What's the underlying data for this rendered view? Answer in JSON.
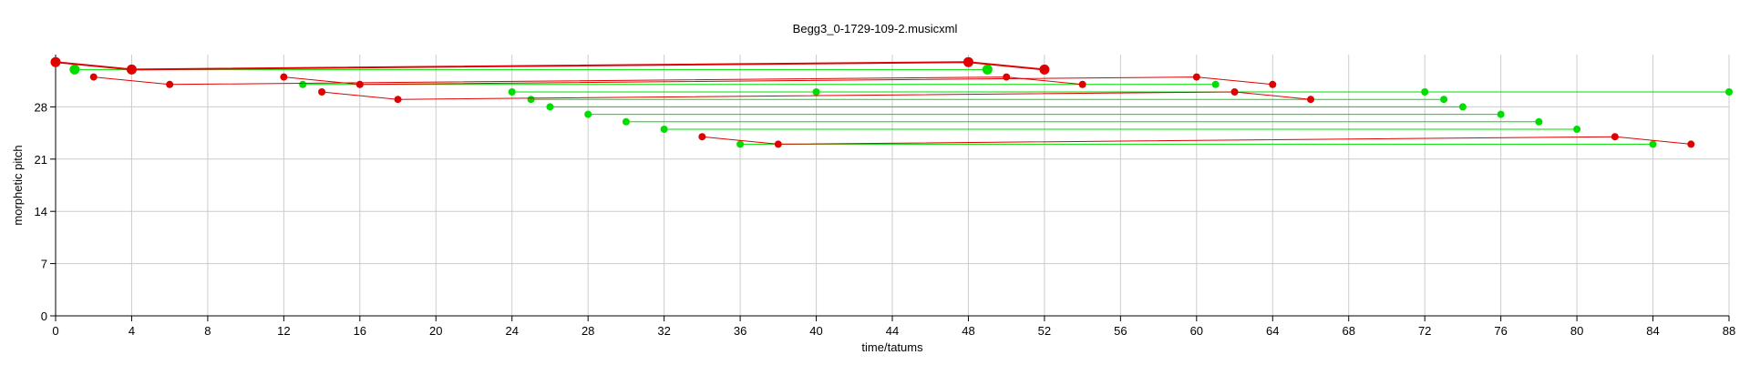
{
  "chart_data": {
    "type": "scatter",
    "title": "Begg3_0-1729-109-2.musicxml",
    "xlabel": "time/tatums",
    "ylabel": "morphetic pitch",
    "xlim": [
      0,
      88
    ],
    "ylim": [
      0,
      35
    ],
    "xticks": [
      0,
      4,
      8,
      12,
      16,
      20,
      24,
      28,
      32,
      36,
      40,
      44,
      48,
      52,
      56,
      60,
      64,
      68,
      72,
      76,
      80,
      84,
      88
    ],
    "yticks": [
      0,
      7,
      14,
      21,
      28
    ],
    "grid": true,
    "series": [
      {
        "color": "#e00000",
        "kind": "pattern-lines",
        "paths": [
          [
            [
              0,
              34
            ],
            [
              4,
              33
            ],
            [
              48,
              34
            ],
            [
              52,
              33
            ]
          ],
          [
            [
              2,
              32
            ],
            [
              6,
              31
            ],
            [
              50,
              32
            ],
            [
              54,
              31
            ]
          ],
          [
            [
              12,
              32
            ],
            [
              16,
              31
            ],
            [
              60,
              32
            ],
            [
              64,
              31
            ]
          ],
          [
            [
              14,
              30
            ],
            [
              18,
              29
            ],
            [
              62,
              30
            ],
            [
              66,
              29
            ]
          ],
          [
            [
              34,
              24
            ],
            [
              38,
              23
            ],
            [
              82,
              24
            ],
            [
              86,
              23
            ]
          ]
        ],
        "large_points": [
          [
            0,
            34
          ],
          [
            4,
            33
          ],
          [
            48,
            34
          ],
          [
            52,
            33
          ]
        ]
      },
      {
        "color": "#00dd00",
        "kind": "translation-lines",
        "pairs": [
          [
            [
              1,
              33
            ],
            [
              49,
              33
            ]
          ],
          [
            [
              13,
              31
            ],
            [
              61,
              31
            ]
          ],
          [
            [
              24,
              30
            ],
            [
              88,
              30
            ]
          ],
          [
            [
              25,
              29
            ],
            [
              73,
              29
            ]
          ],
          [
            [
              26,
              28
            ],
            [
              74,
              28
            ]
          ],
          [
            [
              28,
              27
            ],
            [
              76,
              27
            ]
          ],
          [
            [
              30,
              26
            ],
            [
              78,
              26
            ]
          ],
          [
            [
              32,
              25
            ],
            [
              80,
              25
            ]
          ],
          [
            [
              36,
              23
            ],
            [
              84,
              23
            ]
          ]
        ],
        "extra_points": [
          [
            40,
            30
          ],
          [
            72,
            30
          ]
        ],
        "large_points": [
          [
            1,
            33
          ],
          [
            49,
            33
          ]
        ]
      }
    ]
  }
}
